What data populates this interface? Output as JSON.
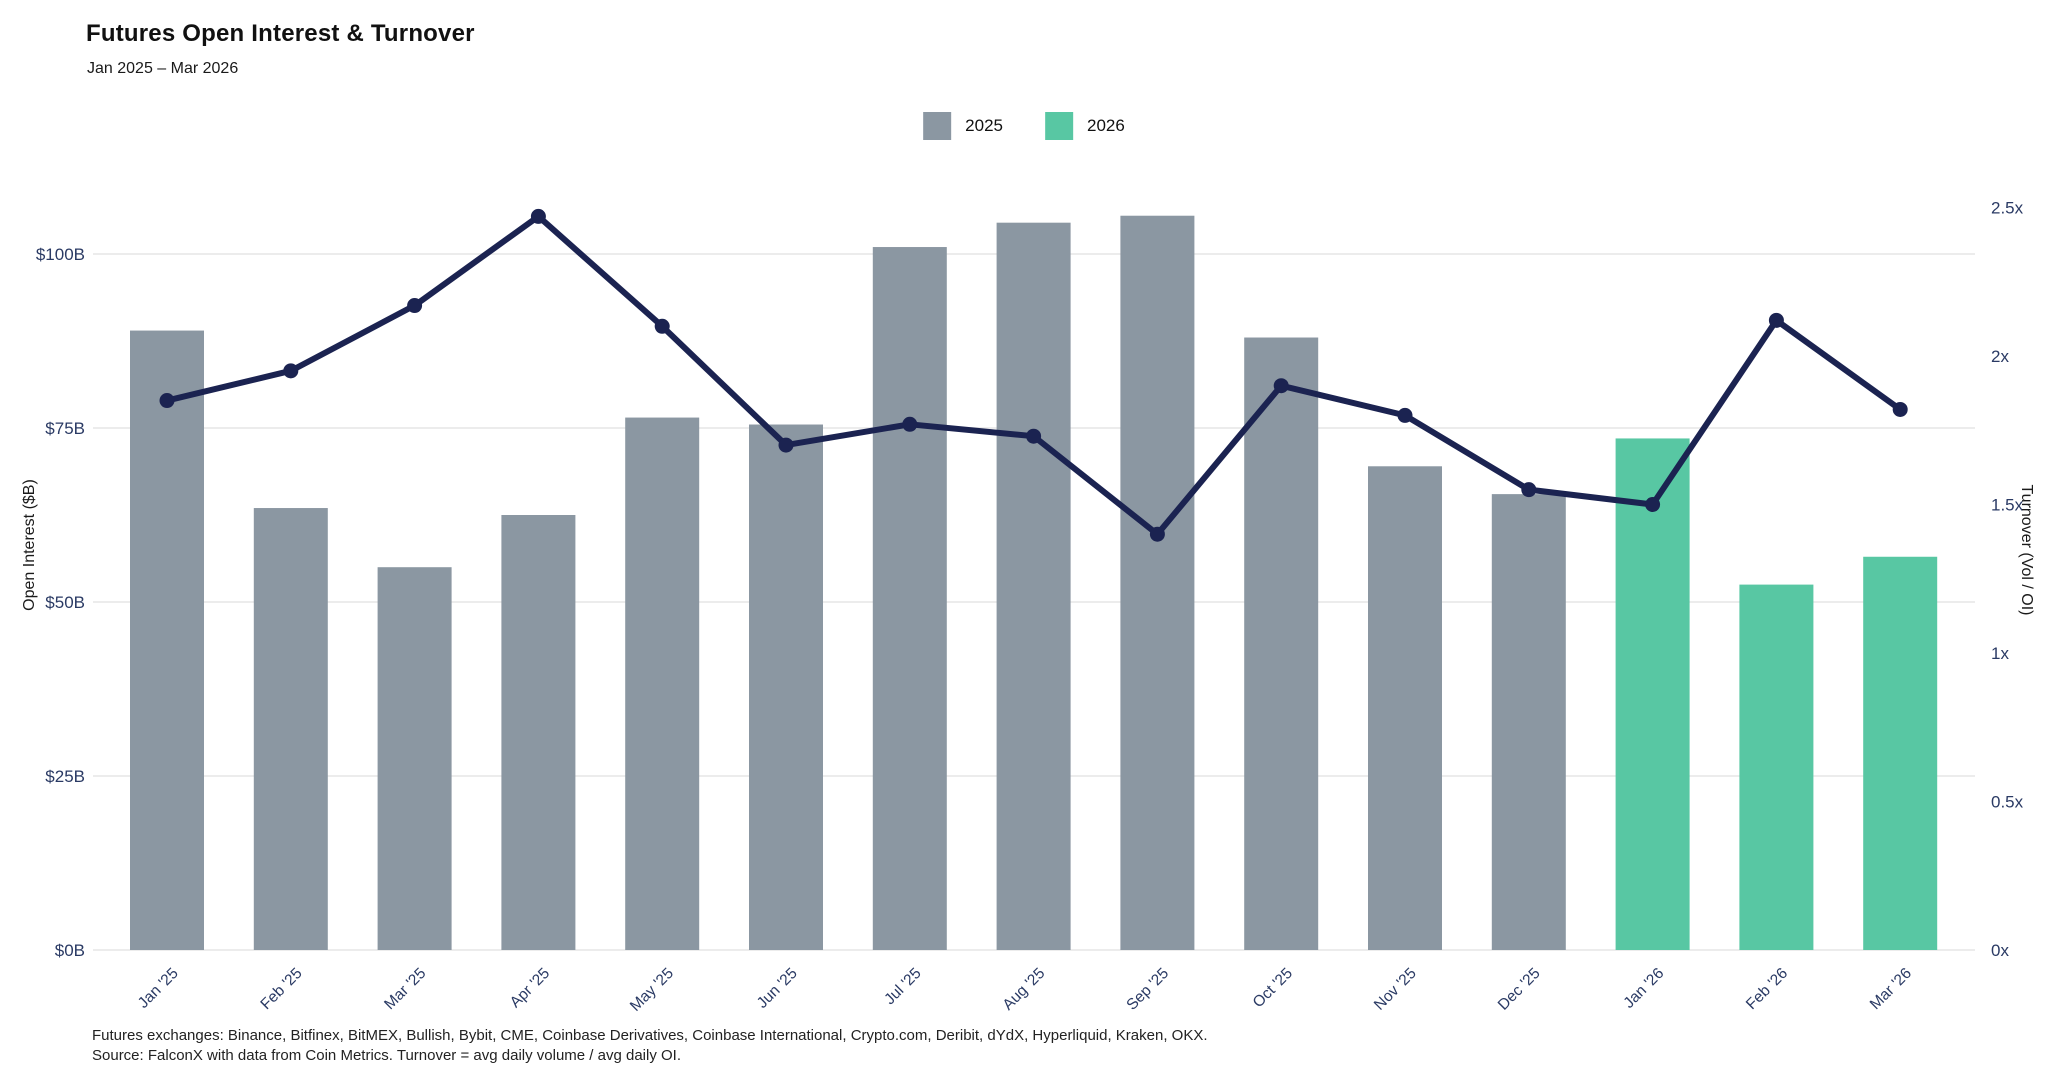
{
  "header": {
    "title": "Futures Open Interest & Turnover",
    "subtitle": "Jan 2025 – Mar 2026"
  },
  "legend": {
    "items": [
      {
        "label": "2025",
        "color": "#8B97A2"
      },
      {
        "label": "2026",
        "color": "#58C7A3"
      }
    ]
  },
  "axes": {
    "left": {
      "title": "Open Interest ($B)"
    },
    "right": {
      "title": "Turnover (Vol / OI)"
    }
  },
  "footer": {
    "line1": "Futures exchanges: Binance, Bitfinex, BitMEX, Bullish, Bybit, CME, Coinbase Derivatives, Coinbase International, Crypto.com, Deribit, dYdX, Hyperliquid, Kraken, OKX.",
    "line2": "Source: FalconX with data from Coin Metrics. Turnover = avg daily volume / avg daily OI."
  },
  "colors": {
    "bar_2025": "#8B97A2",
    "bar_2026": "#58C7A3",
    "line": "#1B2351",
    "grid": "#ECECEC",
    "tick_text": "#2A3A64",
    "axis_title_text": "#1A1A1A",
    "title_text": "#111111",
    "footnote_text": "#222222",
    "background": "#FFFFFF"
  },
  "chart_data": {
    "type": "bar+line",
    "title": "Futures Open Interest & Turnover",
    "subtitle": "Jan 2025 – Mar 2026",
    "categories": [
      "Jan '25",
      "Feb '25",
      "Mar '25",
      "Apr '25",
      "May '25",
      "Jun '25",
      "Jul '25",
      "Aug '25",
      "Sep '25",
      "Oct '25",
      "Nov '25",
      "Dec '25",
      "Jan '26",
      "Feb '26",
      "Mar '26"
    ],
    "bar_series": {
      "name": "Open Interest ($B)",
      "axis": "left",
      "values": [
        89,
        63.5,
        55,
        62.5,
        76.5,
        75.5,
        101,
        104.5,
        105.5,
        88,
        69.5,
        65.5,
        73.5,
        52.5,
        56.5
      ],
      "year_groups": [
        "2025",
        "2025",
        "2025",
        "2025",
        "2025",
        "2025",
        "2025",
        "2025",
        "2025",
        "2025",
        "2025",
        "2025",
        "2026",
        "2026",
        "2026"
      ]
    },
    "line_series": {
      "name": "Turnover (Vol / OI)",
      "axis": "right",
      "values": [
        1.85,
        1.95,
        2.17,
        2.47,
        2.1,
        1.7,
        1.77,
        1.73,
        1.4,
        1.9,
        1.8,
        1.55,
        1.5,
        2.12,
        1.82
      ]
    },
    "left_axis": {
      "label": "Open Interest ($B)",
      "tick_labels": [
        "$0B",
        "$25B",
        "$50B",
        "$75B",
        "$100B"
      ],
      "tick_values": [
        0,
        25,
        50,
        75,
        100
      ],
      "range": [
        0,
        113
      ]
    },
    "right_axis": {
      "label": "Turnover (Vol / OI)",
      "tick_labels": [
        "0x",
        "0.5x",
        "1x",
        "1.5x",
        "2x",
        "2.5x"
      ],
      "tick_values": [
        0,
        0.5,
        1,
        1.5,
        2,
        2.5
      ],
      "range": [
        0,
        2.71
      ]
    },
    "grid": true,
    "legend_position": "top-center",
    "legend": [
      "2025",
      "2026"
    ]
  }
}
